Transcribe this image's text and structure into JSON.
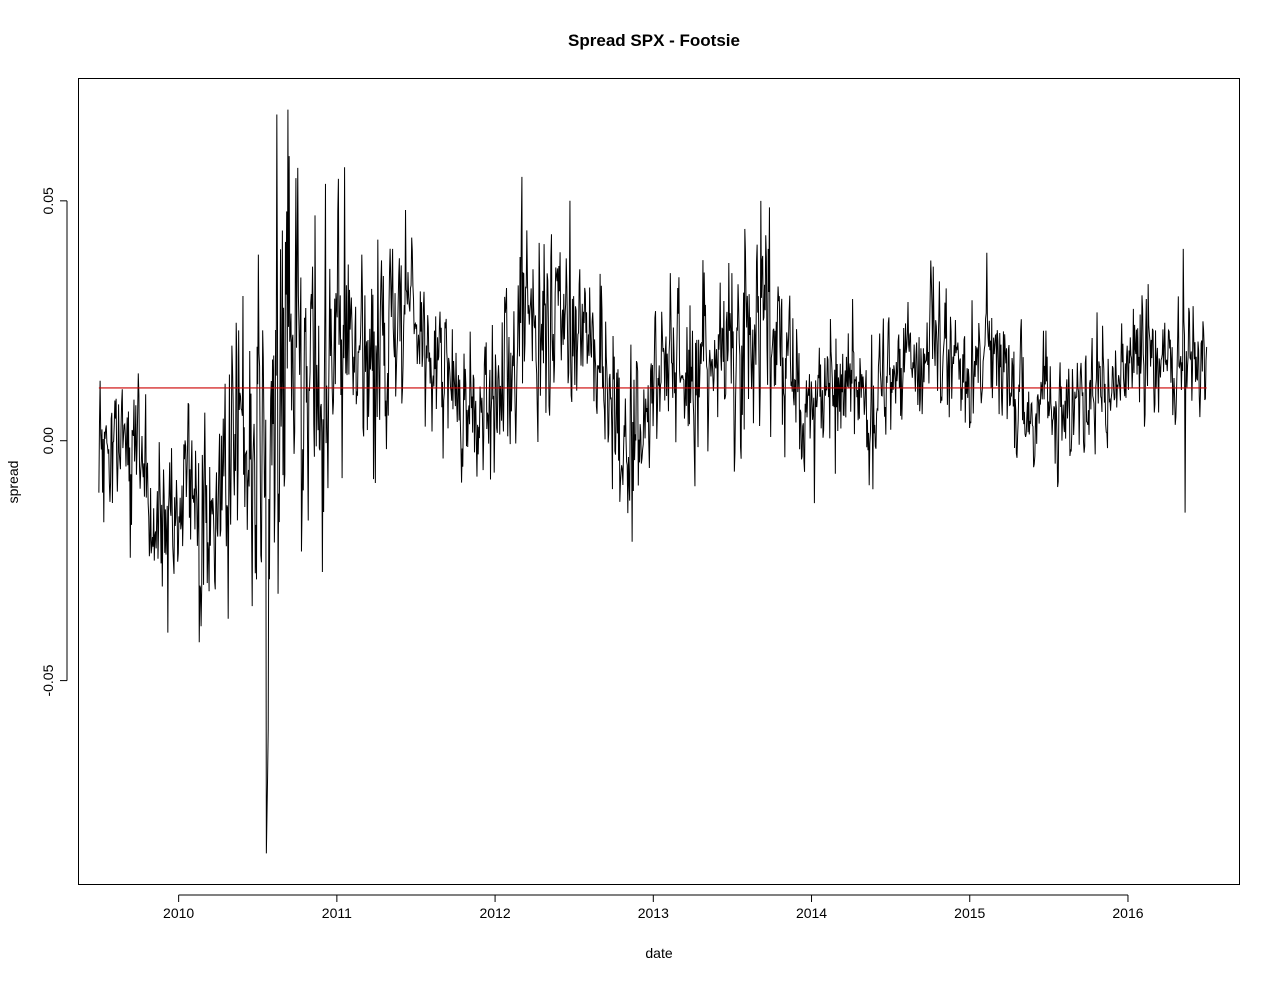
{
  "chart_data": {
    "type": "line",
    "title": "Spread SPX - Footsie",
    "xlabel": "date",
    "ylabel": "spread",
    "x_ticks": [
      "2010",
      "2011",
      "2012",
      "2013",
      "2014",
      "2015",
      "2016"
    ],
    "y_ticks": [
      "-0.05",
      "0.00",
      "0.05"
    ],
    "xlim": [
      "2009-05-15",
      "2016-09-15"
    ],
    "ylim": [
      -0.0925,
      0.0755
    ],
    "grid": false,
    "legend": "none",
    "series": [
      {
        "color": "#000000",
        "x_start": "2009-07-01",
        "x_end": "2016-07-01",
        "keypoints": [
          [
            2009.5,
            -0.005
          ],
          [
            2009.62,
            -0.008
          ],
          [
            2009.75,
            0.0
          ],
          [
            2009.85,
            -0.02
          ],
          [
            2009.95,
            -0.015
          ],
          [
            2010.1,
            -0.01
          ],
          [
            2010.2,
            -0.015
          ],
          [
            2010.3,
            -0.01
          ],
          [
            2010.4,
            -0.005
          ],
          [
            2010.5,
            0.0
          ],
          [
            2010.58,
            -0.015
          ],
          [
            2010.63,
            0.01
          ],
          [
            2010.7,
            0.025
          ],
          [
            2010.8,
            0.02
          ],
          [
            2010.9,
            0.015
          ],
          [
            2011.0,
            0.022
          ],
          [
            2011.1,
            0.02
          ],
          [
            2011.2,
            0.018
          ],
          [
            2011.3,
            0.022
          ],
          [
            2011.4,
            0.03
          ],
          [
            2011.5,
            0.028
          ],
          [
            2011.6,
            0.02
          ],
          [
            2011.7,
            0.012
          ],
          [
            2011.8,
            0.004
          ],
          [
            2011.9,
            0.005
          ],
          [
            2012.0,
            0.008
          ],
          [
            2012.1,
            0.015
          ],
          [
            2012.2,
            0.025
          ],
          [
            2012.3,
            0.025
          ],
          [
            2012.4,
            0.025
          ],
          [
            2012.5,
            0.028
          ],
          [
            2012.6,
            0.02
          ],
          [
            2012.7,
            0.005
          ],
          [
            2012.8,
            -0.002
          ],
          [
            2012.9,
            0.005
          ],
          [
            2013.0,
            0.015
          ],
          [
            2013.1,
            0.012
          ],
          [
            2013.2,
            0.012
          ],
          [
            2013.3,
            0.015
          ],
          [
            2013.4,
            0.02
          ],
          [
            2013.5,
            0.022
          ],
          [
            2013.6,
            0.02
          ],
          [
            2013.7,
            0.025
          ],
          [
            2013.8,
            0.015
          ],
          [
            2013.9,
            0.012
          ],
          [
            2014.0,
            0.008
          ],
          [
            2014.1,
            0.012
          ],
          [
            2014.2,
            0.012
          ],
          [
            2014.3,
            0.01
          ],
          [
            2014.4,
            0.008
          ],
          [
            2014.5,
            0.012
          ],
          [
            2014.6,
            0.02
          ],
          [
            2014.7,
            0.02
          ],
          [
            2014.8,
            0.022
          ],
          [
            2014.9,
            0.018
          ],
          [
            2015.0,
            0.015
          ],
          [
            2015.1,
            0.02
          ],
          [
            2015.2,
            0.018
          ],
          [
            2015.3,
            0.012
          ],
          [
            2015.4,
            0.008
          ],
          [
            2015.5,
            0.008
          ],
          [
            2015.6,
            0.006
          ],
          [
            2015.7,
            0.008
          ],
          [
            2015.8,
            0.01
          ],
          [
            2015.9,
            0.012
          ],
          [
            2016.0,
            0.015
          ],
          [
            2016.1,
            0.017
          ],
          [
            2016.2,
            0.016
          ],
          [
            2016.3,
            0.015
          ],
          [
            2016.4,
            0.02
          ],
          [
            2016.5,
            0.02
          ]
        ],
        "volatility": [
          [
            2009.5,
            0.008
          ],
          [
            2010.0,
            0.01
          ],
          [
            2010.4,
            0.012
          ],
          [
            2010.5,
            0.02
          ],
          [
            2010.65,
            0.028
          ],
          [
            2010.8,
            0.018
          ],
          [
            2011.0,
            0.015
          ],
          [
            2011.3,
            0.012
          ],
          [
            2011.5,
            0.008
          ],
          [
            2012.0,
            0.008
          ],
          [
            2012.2,
            0.012
          ],
          [
            2012.7,
            0.009
          ],
          [
            2013.0,
            0.009
          ],
          [
            2013.6,
            0.011
          ],
          [
            2014.0,
            0.009
          ],
          [
            2015.0,
            0.008
          ],
          [
            2016.0,
            0.007
          ],
          [
            2016.5,
            0.007
          ]
        ],
        "extremes": [
          [
            2010.553,
            -0.086
          ],
          [
            2010.557,
            -0.078
          ],
          [
            2010.561,
            -0.07
          ],
          [
            2010.565,
            -0.06
          ],
          [
            2010.62,
            0.068
          ],
          [
            2010.69,
            0.069
          ],
          [
            2011.05,
            0.057
          ],
          [
            2012.17,
            0.055
          ],
          [
            2013.68,
            0.05
          ],
          [
            2016.35,
            0.04
          ],
          [
            2016.36,
            -0.015
          ],
          [
            2009.93,
            -0.04
          ],
          [
            2011.23,
            -0.008
          ],
          [
            2014.02,
            -0.013
          ]
        ]
      },
      {
        "color": "#cc0000",
        "y": 0.011,
        "x_start": "2009-07-01",
        "x_end": "2016-07-01"
      }
    ]
  }
}
